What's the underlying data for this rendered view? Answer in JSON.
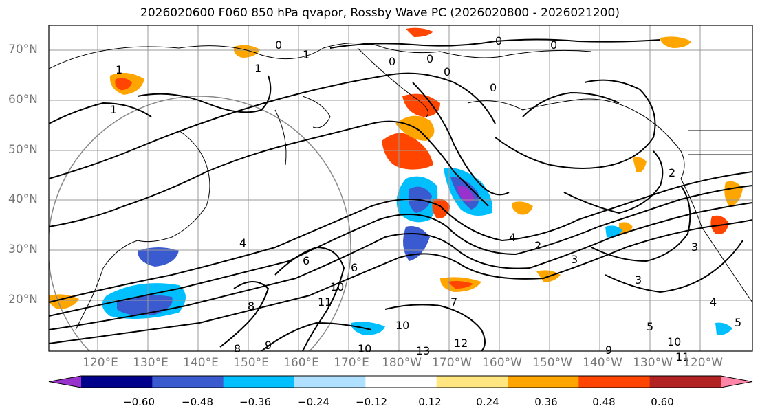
{
  "title": "2026020600 F060 850 hPa qvapor, Rossby Wave PC (2026020800 - 2026021200)",
  "lat_labels": [
    "70°N",
    "60°N",
    "50°N",
    "40°N",
    "30°N",
    "20°N"
  ],
  "lon_labels": [
    "120°E",
    "130°E",
    "140°E",
    "150°E",
    "160°E",
    "170°E",
    "180°W",
    "170°W",
    "160°W",
    "150°W",
    "140°W",
    "130°W",
    "120°W"
  ],
  "colorbar": {
    "ticks": [
      "−0.60",
      "−0.48",
      "−0.36",
      "−0.24",
      "−0.12",
      "0.12",
      "0.24",
      "0.36",
      "0.48",
      "0.60"
    ],
    "colors": [
      "#9932cc",
      "#00008b",
      "#3a5bcf",
      "#00bfff",
      "#b0e0ff",
      "#ffffff",
      "#ffe680",
      "#ffa500",
      "#ff4500",
      "#b22222",
      "#ff85a8"
    ]
  },
  "contour_labels": [
    "0",
    "0",
    "0",
    "0",
    "0",
    "0",
    "1",
    "1",
    "1",
    "1",
    "0",
    "2",
    "2",
    "3",
    "3",
    "3",
    "4",
    "4",
    "4",
    "5",
    "5",
    "6",
    "6",
    "7",
    "8",
    "8",
    "9",
    "9",
    "10",
    "10",
    "10",
    "10",
    "11",
    "11",
    "12",
    "13"
  ]
}
